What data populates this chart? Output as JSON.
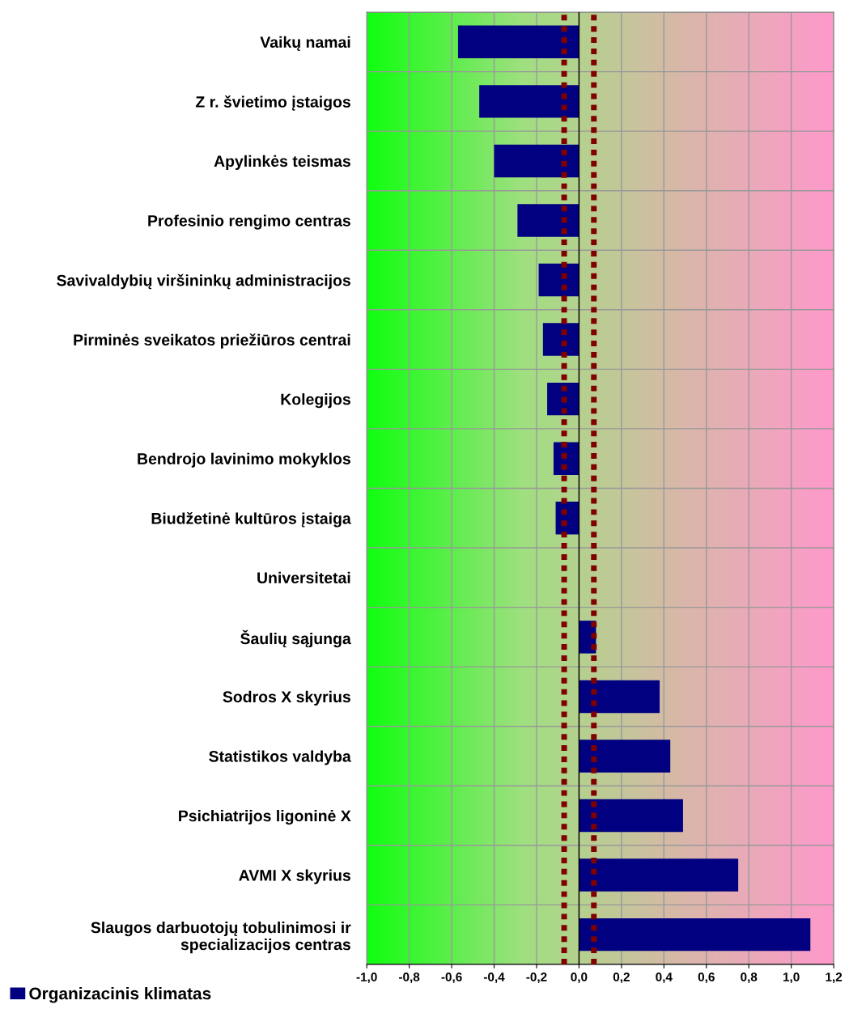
{
  "chart_data": {
    "type": "bar",
    "orientation": "horizontal",
    "categories": [
      "Vaikų namai",
      "Z r. švietimo įstaigos",
      "Apylinkės teismas",
      "Profesinio rengimo centras",
      "Savivaldybių viršininkų administracijos",
      "Pirminės sveikatos priežiūros centrai",
      "Kolegijos",
      "Bendrojo lavinimo mokyklos",
      "Biudžetinė kultūros įstaiga",
      "Universitetai",
      "Šaulių sąjunga",
      "Sodros X skyrius",
      "Statistikos valdyba",
      "Psichiatrijos ligoninė X",
      "AVMI X skyrius",
      "Slaugos darbuotojų tobulinimosi ir\nspecializacijos centras"
    ],
    "series": [
      {
        "name": "Organizacinis klimatas",
        "color": "#000080",
        "values": [
          -0.57,
          -0.47,
          -0.4,
          -0.29,
          -0.19,
          -0.17,
          -0.15,
          -0.12,
          -0.11,
          0,
          0.08,
          0.38,
          0.43,
          0.49,
          0.75,
          1.09
        ]
      }
    ],
    "xlim": [
      -1.0,
      1.2
    ],
    "xticks": [
      {
        "value": -1.0,
        "label": "-1,0"
      },
      {
        "value": -0.8,
        "label": "-0,8"
      },
      {
        "value": -0.6,
        "label": "-0,6"
      },
      {
        "value": -0.4,
        "label": "-0,4"
      },
      {
        "value": -0.2,
        "label": "-0,2"
      },
      {
        "value": 0.0,
        "label": "0,0"
      },
      {
        "value": 0.2,
        "label": "0,2"
      },
      {
        "value": 0.4,
        "label": "0,4"
      },
      {
        "value": 0.6,
        "label": "0,6"
      },
      {
        "value": 0.8,
        "label": "0,8"
      },
      {
        "value": 1.0,
        "label": "1,0"
      },
      {
        "value": 1.2,
        "label": "1,2"
      }
    ],
    "ref_lines": [
      {
        "axis": "x",
        "value": -0.07,
        "color": "#800000",
        "line_style": "dotted"
      },
      {
        "axis": "x",
        "value": 0.07,
        "color": "#800000",
        "line_style": "dotted"
      }
    ],
    "grid": true,
    "legend": "bottom left"
  }
}
